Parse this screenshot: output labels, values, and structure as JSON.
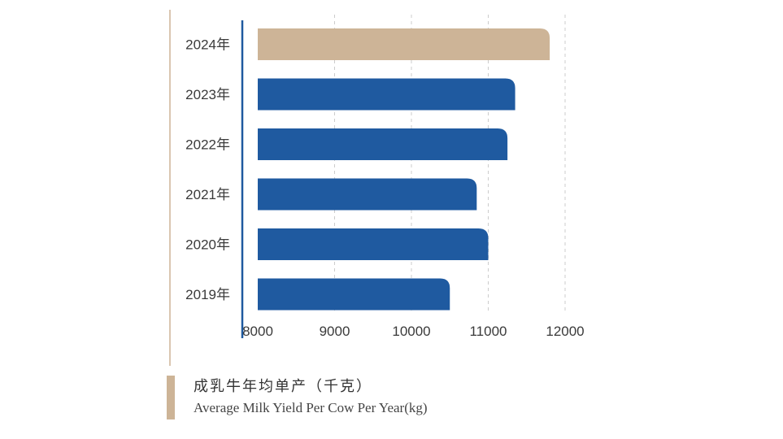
{
  "chart_data": {
    "type": "bar",
    "orientation": "horizontal",
    "categories": [
      "2024年",
      "2023年",
      "2022年",
      "2021年",
      "2020年",
      "2019年"
    ],
    "values": [
      11800,
      11350,
      11250,
      10850,
      11000,
      10500
    ],
    "highlight_category": "2024年",
    "xlim": [
      8000,
      12000
    ],
    "xticks": [
      "8000",
      "9000",
      "10000",
      "11000",
      "12000"
    ],
    "grid": "vertical dashed",
    "title": "成乳牛年均单产（千克）",
    "subtitle": "Average Milk Yield Per Cow Per Year(kg)",
    "legend_placement": "bottom-left"
  },
  "colors": {
    "bar": "#1f5aa0",
    "highlight": "#cdb497",
    "axis": "#1f5aa0",
    "grid": "#cccccc",
    "accent_line": "#cdb497"
  }
}
